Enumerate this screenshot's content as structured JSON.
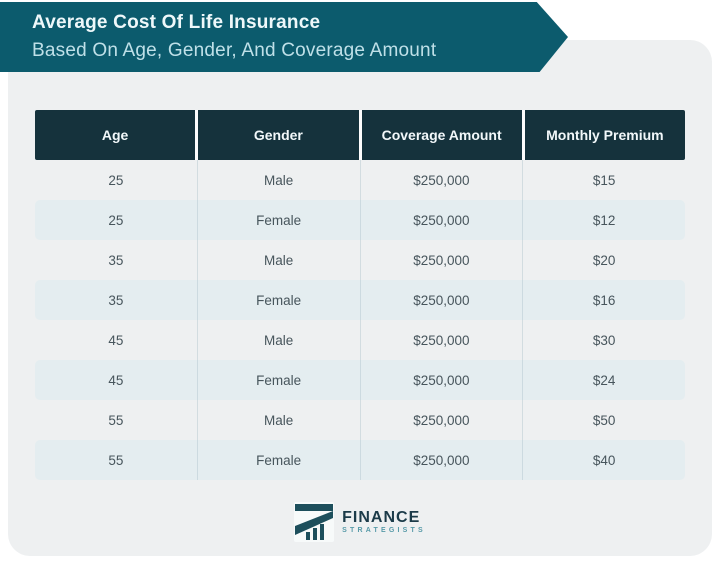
{
  "banner": {
    "title": "Average Cost Of Life Insurance",
    "subtitle": "Based On Age, Gender, And Coverage Amount",
    "bg_color": "#0c5b6d",
    "title_color": "#eef8fa",
    "subtitle_color": "#bfe0e8"
  },
  "table": {
    "headers": [
      "Age",
      "Gender",
      "Coverage Amount",
      "Monthly Premium"
    ],
    "rows": [
      [
        "25",
        "Male",
        "$250,000",
        "$15"
      ],
      [
        "25",
        "Female",
        "$250,000",
        "$12"
      ],
      [
        "35",
        "Male",
        "$250,000",
        "$20"
      ],
      [
        "35",
        "Female",
        "$250,000",
        "$16"
      ],
      [
        "45",
        "Male",
        "$250,000",
        "$30"
      ],
      [
        "45",
        "Female",
        "$250,000",
        "$24"
      ],
      [
        "55",
        "Male",
        "$250,000",
        "$50"
      ],
      [
        "55",
        "Female",
        "$250,000",
        "$40"
      ]
    ],
    "header_bg_color": "#15323c",
    "alt_row_color": "#e4edf0",
    "card_bg_color": "#eef0f1"
  },
  "footer": {
    "brand_primary": "FINANCE",
    "brand_secondary": "STRATEGISTS"
  },
  "chart_data": {
    "type": "table",
    "title": "Average Cost Of Life Insurance Based On Age, Gender, And Coverage Amount",
    "columns": [
      "Age",
      "Gender",
      "Coverage Amount",
      "Monthly Premium"
    ],
    "rows": [
      [
        25,
        "Male",
        "$250,000",
        "$15"
      ],
      [
        25,
        "Female",
        "$250,000",
        "$12"
      ],
      [
        35,
        "Male",
        "$250,000",
        "$20"
      ],
      [
        35,
        "Female",
        "$250,000",
        "$16"
      ],
      [
        45,
        "Male",
        "$250,000",
        "$30"
      ],
      [
        45,
        "Female",
        "$250,000",
        "$24"
      ],
      [
        55,
        "Male",
        "$250,000",
        "$50"
      ],
      [
        55,
        "Female",
        "$250,000",
        "$40"
      ]
    ],
    "monthly_premium_by_row": [
      15,
      12,
      20,
      16,
      30,
      24,
      50,
      40
    ],
    "coverage_amount_usd": 250000
  }
}
